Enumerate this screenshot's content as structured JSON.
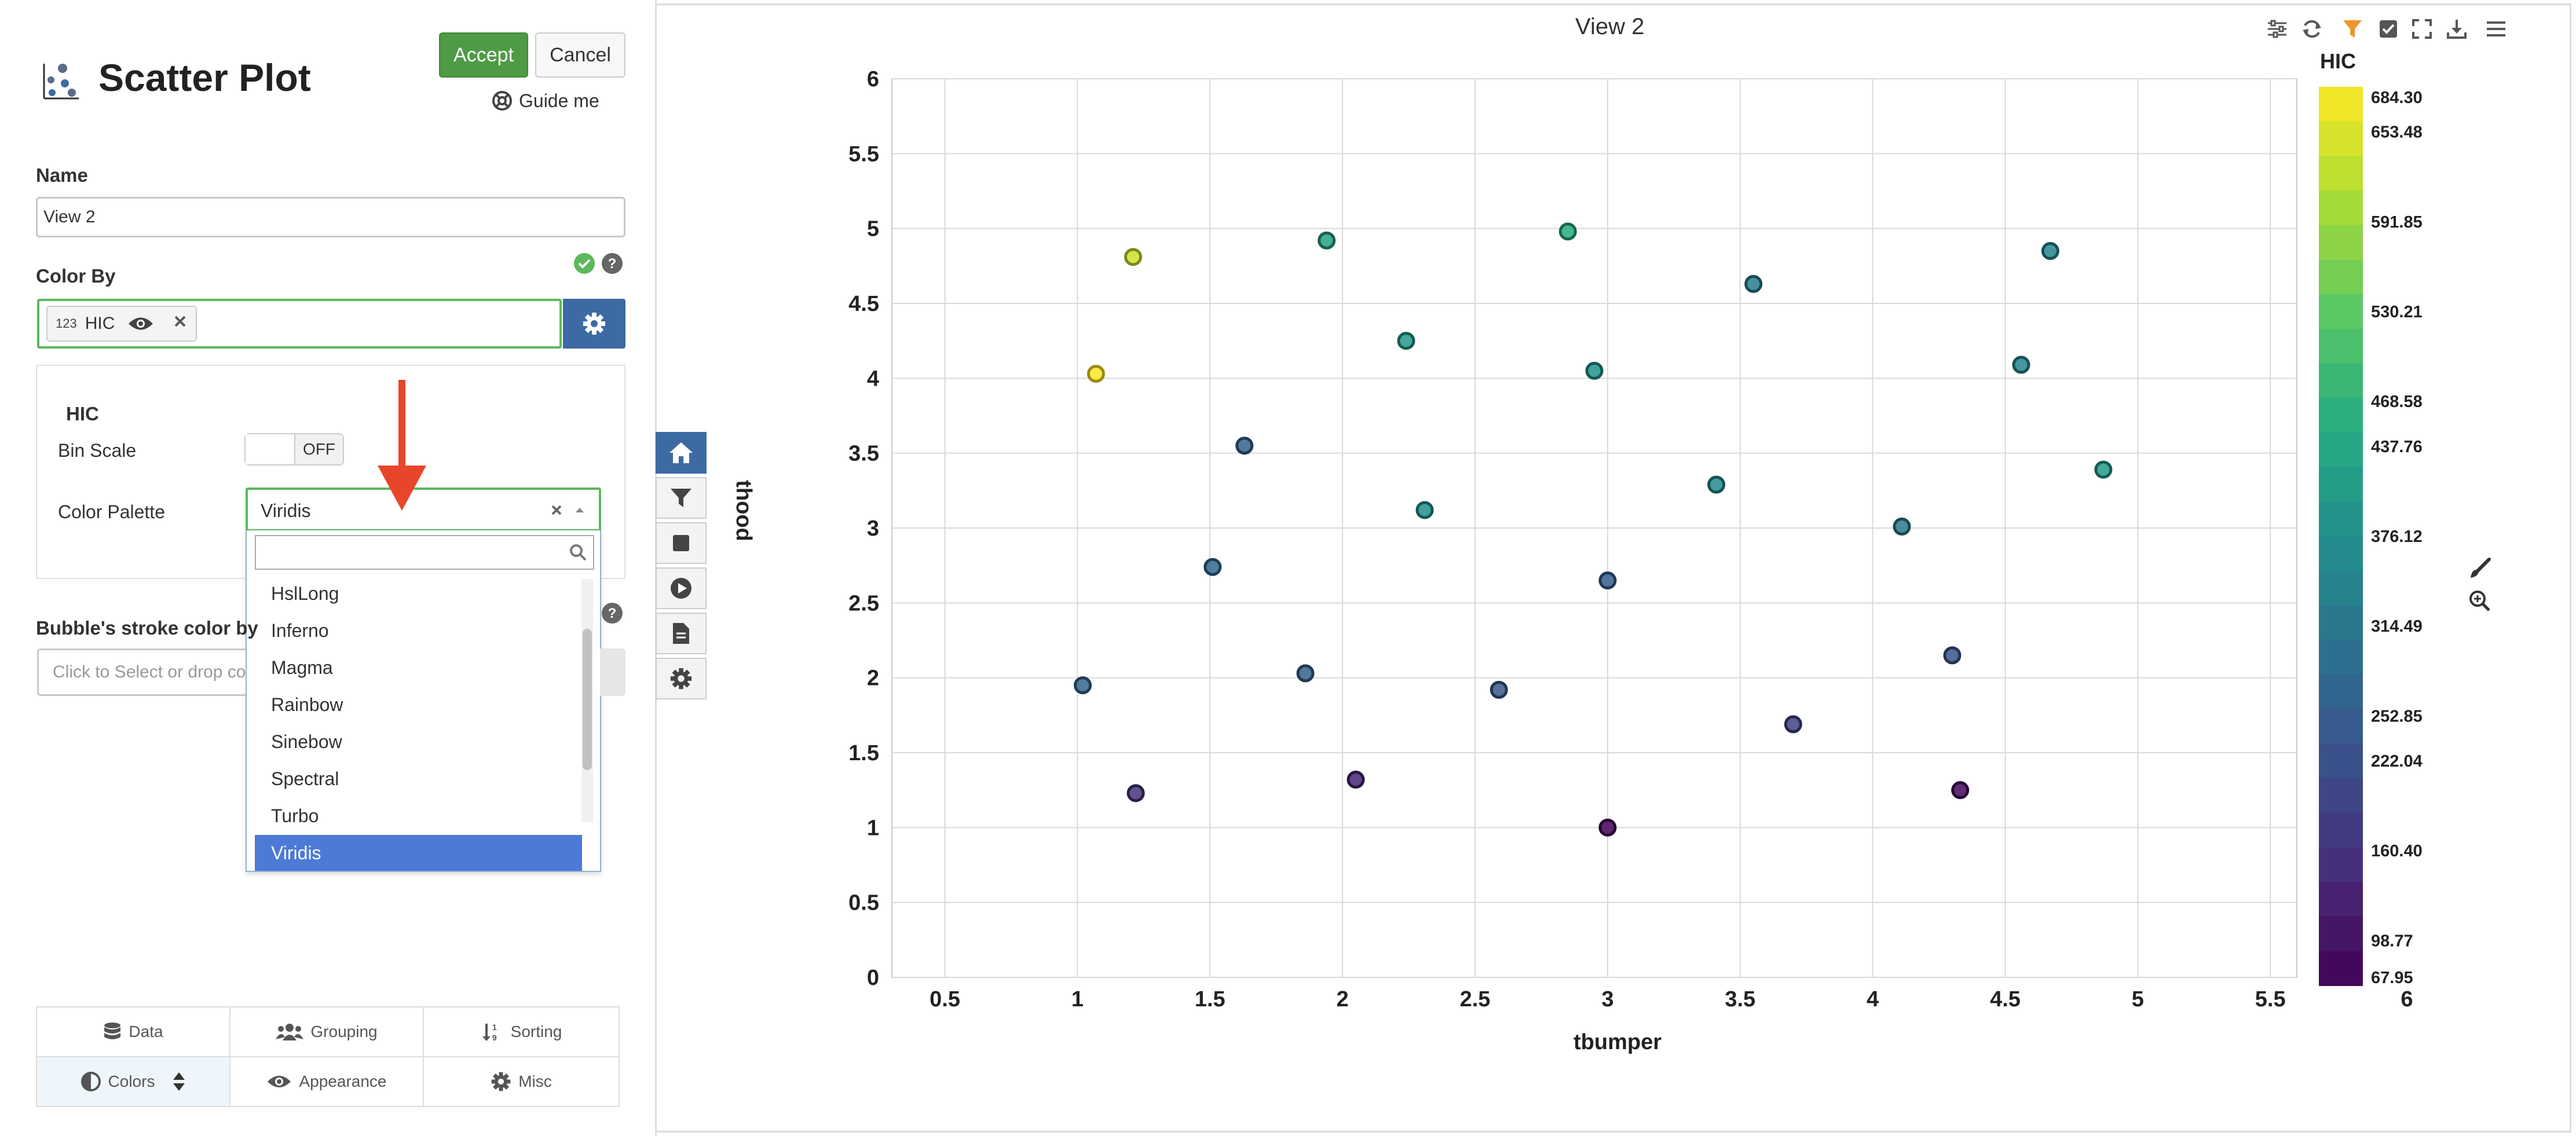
{
  "panel": {
    "title": "Scatter Plot",
    "accept_label": "Accept",
    "cancel_label": "Cancel",
    "guide_label": "Guide me",
    "name_label": "Name",
    "name_value": "View 2",
    "color_by_label": "Color By",
    "color_chip_type": "123",
    "color_chip_label": "HIC",
    "section_title": "HIC",
    "bin_scale_label": "Bin Scale",
    "bin_scale_state": "OFF",
    "color_palette_label": "Color Palette",
    "color_palette_value": "Viridis",
    "palette_options": [
      "HslLong",
      "Inferno",
      "Magma",
      "Rainbow",
      "Sinebow",
      "Spectral",
      "Turbo",
      "Viridis"
    ],
    "palette_selected": "Viridis",
    "stroke_label": "Bubble's stroke color by",
    "stroke_placeholder": "Click to Select or drop co",
    "tabs": {
      "data": "Data",
      "grouping": "Grouping",
      "sorting": "Sorting",
      "colors": "Colors",
      "appearance": "Appearance",
      "misc": "Misc"
    }
  },
  "view": {
    "title": "View 2"
  },
  "colors": {
    "accent_green": "#4e9a45",
    "accent_blue": "#3d6aa3",
    "selected_blue": "#4c7ad6",
    "arrow_red": "#e7462b",
    "filter_orange": "#f0942a"
  },
  "icons": [
    "scatter-plot-icon",
    "lifebuoy-icon",
    "eye-icon",
    "close-icon",
    "gear-icon",
    "search-icon",
    "home-icon",
    "filter-icon",
    "square-icon",
    "play-icon",
    "document-icon",
    "sliders-icon",
    "refresh-icon",
    "check-icon",
    "fullscreen-icon",
    "download-icon",
    "menu-icon",
    "paintbrush-icon",
    "zoom-in-icon",
    "database-icon",
    "users-icon",
    "sort-icon",
    "contrast-icon"
  ],
  "chart_data": {
    "type": "scatter",
    "title": "View 2",
    "xlabel": "tbumper",
    "ylabel": "thood",
    "xlim": [
      0.3,
      5.6
    ],
    "ylim": [
      0,
      6
    ],
    "xticks": [
      "0.5",
      "1",
      "1.5",
      "2",
      "2.5",
      "3",
      "3.5",
      "4",
      "4.5",
      "5",
      "5.5"
    ],
    "yticks": [
      "0",
      "0.5",
      "1",
      "1.5",
      "2",
      "2.5",
      "3",
      "3.5",
      "4",
      "4.5",
      "5",
      "5.5",
      "6"
    ],
    "grid": true,
    "color_by": "HIC",
    "colorscale": "Viridis",
    "colorbar": {
      "title": "HIC",
      "tick_labels": [
        "684.30",
        "653.48",
        "591.85",
        "530.21",
        "468.58",
        "437.76",
        "376.12",
        "314.49",
        "252.85",
        "222.04",
        "160.40",
        "98.77",
        "67.95"
      ],
      "bottom_label": "6"
    },
    "points": [
      {
        "x": 1.21,
        "y": 4.81,
        "c": 640
      },
      {
        "x": 1.07,
        "y": 4.03,
        "c": 684
      },
      {
        "x": 1.94,
        "y": 4.92,
        "c": 420
      },
      {
        "x": 2.85,
        "y": 4.98,
        "c": 450
      },
      {
        "x": 2.24,
        "y": 4.25,
        "c": 400
      },
      {
        "x": 2.95,
        "y": 4.05,
        "c": 380
      },
      {
        "x": 3.55,
        "y": 4.63,
        "c": 330
      },
      {
        "x": 4.67,
        "y": 4.85,
        "c": 350
      },
      {
        "x": 4.56,
        "y": 4.09,
        "c": 350
      },
      {
        "x": 4.87,
        "y": 3.39,
        "c": 400
      },
      {
        "x": 1.63,
        "y": 3.55,
        "c": 260
      },
      {
        "x": 2.31,
        "y": 3.12,
        "c": 380
      },
      {
        "x": 3.41,
        "y": 3.29,
        "c": 360
      },
      {
        "x": 4.11,
        "y": 3.01,
        "c": 320
      },
      {
        "x": 1.51,
        "y": 2.74,
        "c": 280
      },
      {
        "x": 3.0,
        "y": 2.65,
        "c": 250
      },
      {
        "x": 1.02,
        "y": 1.95,
        "c": 270
      },
      {
        "x": 1.86,
        "y": 2.03,
        "c": 260
      },
      {
        "x": 2.59,
        "y": 1.92,
        "c": 240
      },
      {
        "x": 4.3,
        "y": 2.15,
        "c": 230
      },
      {
        "x": 3.7,
        "y": 1.69,
        "c": 190
      },
      {
        "x": 1.22,
        "y": 1.23,
        "c": 160
      },
      {
        "x": 2.05,
        "y": 1.32,
        "c": 130
      },
      {
        "x": 3.0,
        "y": 1.0,
        "c": 70
      },
      {
        "x": 4.33,
        "y": 1.25,
        "c": 80
      }
    ]
  }
}
